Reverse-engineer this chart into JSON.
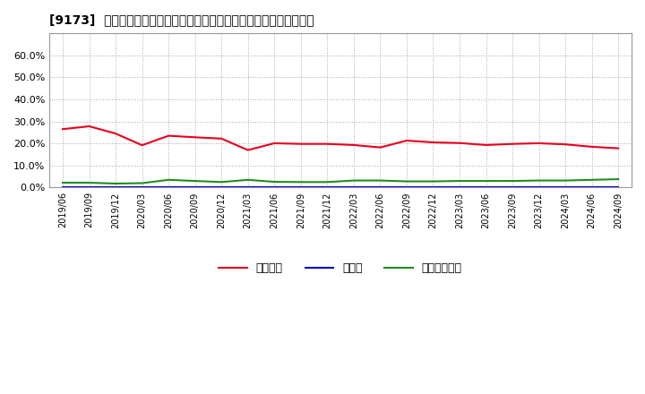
{
  "title": "[9173]  自己資本、のれん、繰延税金資産の総資産に対する比率の推移",
  "x_labels": [
    "2019/06",
    "2019/09",
    "2019/12",
    "2020/03",
    "2020/06",
    "2020/09",
    "2020/12",
    "2021/03",
    "2021/06",
    "2021/09",
    "2021/12",
    "2022/03",
    "2022/06",
    "2022/09",
    "2022/12",
    "2023/03",
    "2023/06",
    "2023/09",
    "2023/12",
    "2024/03",
    "2024/06",
    "2024/09"
  ],
  "jiko_shihon": [
    26.5,
    27.8,
    24.5,
    19.2,
    23.5,
    22.8,
    22.2,
    17.0,
    20.1,
    19.8,
    19.8,
    19.3,
    18.2,
    21.3,
    20.5,
    20.2,
    19.3,
    19.8,
    20.1,
    19.6,
    18.5,
    17.8
  ],
  "noren": [
    0.0,
    0.0,
    0.0,
    0.0,
    0.0,
    0.0,
    0.0,
    0.0,
    0.0,
    0.0,
    0.0,
    0.0,
    0.0,
    0.0,
    0.0,
    0.0,
    0.0,
    0.0,
    0.0,
    0.0,
    0.0,
    0.0
  ],
  "kurinobe_zeikin": [
    2.2,
    2.2,
    1.8,
    2.0,
    3.5,
    3.0,
    2.5,
    3.5,
    2.6,
    2.5,
    2.5,
    3.2,
    3.2,
    2.8,
    2.8,
    3.0,
    3.0,
    3.0,
    3.2,
    3.2,
    3.5,
    3.8
  ],
  "jiko_color": "#e8001c",
  "noren_color": "#0000cd",
  "kurinobe_color": "#228b22",
  "bg_color": "#ffffff",
  "plot_bg_color": "#ffffff",
  "grid_color": "#aaaaaa",
  "ylim": [
    0,
    70
  ],
  "yticks": [
    0,
    10,
    20,
    30,
    40,
    50,
    60
  ],
  "legend_labels": [
    "自己資本",
    "のれん",
    "繰延税金資産"
  ]
}
